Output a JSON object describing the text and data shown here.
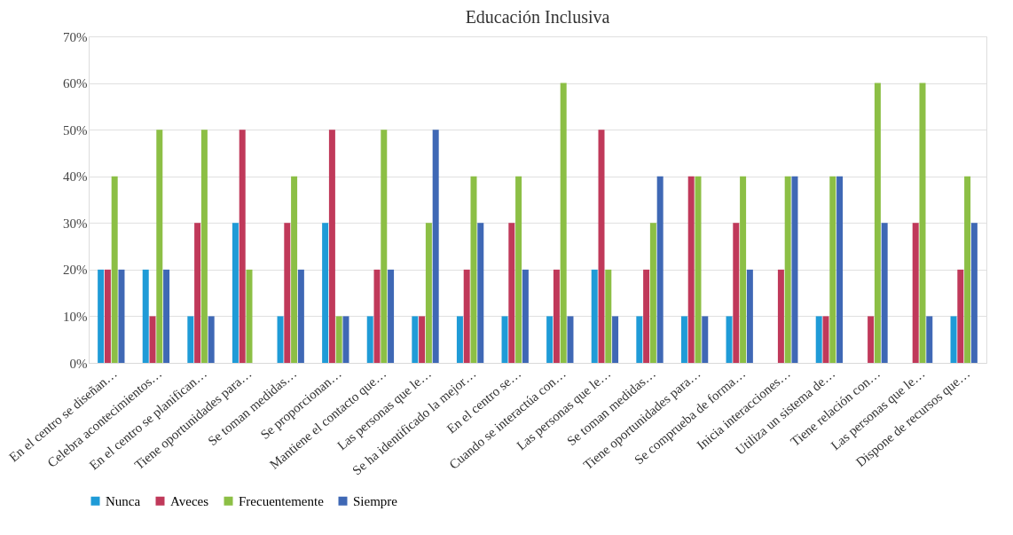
{
  "chart_data": {
    "type": "bar",
    "title": "Educación Inclusiva",
    "categories": [
      "En el centro se diseñan…",
      "Celebra acontecimientos…",
      "En el centro se planifican…",
      "Tiene oportunidades para…",
      "Se toman medidas…",
      "Se proporcionan…",
      "Mantiene el contacto que…",
      "Las personas que le…",
      "Se ha identificado la mejor…",
      "En el centro se…",
      "Cuando se interactúa con…",
      "Las personas que le…",
      "Se toman medidas…",
      "Tiene oportunidades para…",
      "Se comprueba de forma…",
      "Inicia interacciones…",
      "Utiliza un sistema de…",
      "Tiene relación con…",
      "Las personas que le…",
      "Dispone de recursos que…"
    ],
    "series": [
      {
        "name": "Nunca",
        "color": "#1f9bd7",
        "values": [
          20,
          20,
          10,
          30,
          10,
          30,
          10,
          10,
          10,
          10,
          10,
          20,
          10,
          10,
          10,
          0,
          10,
          0,
          0,
          10
        ]
      },
      {
        "name": "Aveces",
        "color": "#c0395a",
        "values": [
          20,
          10,
          30,
          50,
          30,
          50,
          20,
          10,
          20,
          30,
          20,
          50,
          20,
          40,
          30,
          20,
          10,
          10,
          30,
          20
        ]
      },
      {
        "name": "Frecuentemente",
        "color": "#8cbf45",
        "values": [
          40,
          50,
          50,
          20,
          40,
          10,
          50,
          30,
          40,
          40,
          60,
          20,
          30,
          40,
          40,
          40,
          40,
          60,
          60,
          40
        ]
      },
      {
        "name": "Siempre",
        "color": "#3f68b5",
        "values": [
          20,
          20,
          10,
          0,
          20,
          10,
          20,
          50,
          30,
          20,
          10,
          10,
          40,
          10,
          20,
          40,
          40,
          30,
          10,
          30
        ]
      }
    ],
    "ylim": [
      0,
      70
    ],
    "yticks": [
      {
        "value": 0,
        "label": "0%"
      },
      {
        "value": 10,
        "label": "10%"
      },
      {
        "value": 20,
        "label": "20%"
      },
      {
        "value": 30,
        "label": "30%"
      },
      {
        "value": 40,
        "label": "40%"
      },
      {
        "value": 50,
        "label": "50%"
      },
      {
        "value": 60,
        "label": "60%"
      },
      {
        "value": 70,
        "label": "70%"
      }
    ],
    "grid": "y",
    "legend": "bottom"
  }
}
